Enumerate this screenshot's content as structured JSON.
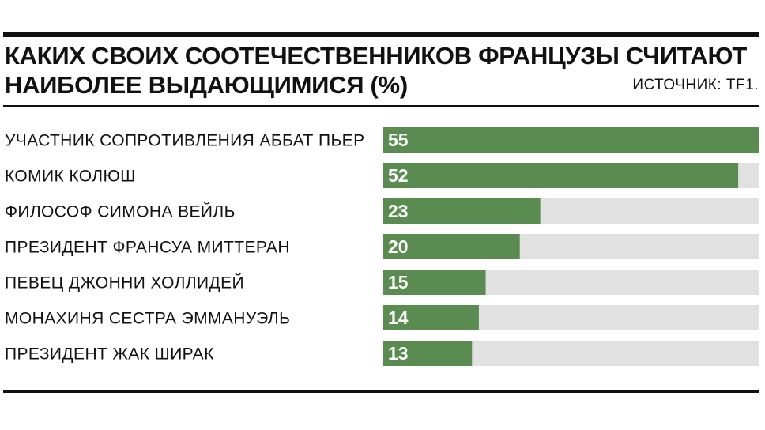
{
  "header": {
    "title_line1": "КАКИХ СВОИХ СООТЕЧЕСТВЕННИКОВ ФРАНЦУЗЫ СЧИТАЮТ",
    "title_line2": "НАИБОЛЕЕ ВЫДАЮЩИМИСЯ (%)",
    "source": "ИСТОЧНИК: TF1."
  },
  "colors": {
    "bar": "#5a8c52",
    "track": "#e1e1e1",
    "text": "#111111",
    "value_text": "#ffffff"
  },
  "chart_data": {
    "type": "bar",
    "orientation": "horizontal",
    "title": "КАКИХ СВОИХ СООТЕЧЕСТВЕННИКОВ ФРАНЦУЗЫ СЧИТАЮТ НАИБОЛЕЕ ВЫДАЮЩИМИСЯ (%)",
    "categories": [
      "УЧАСТНИК СОПРОТИВЛЕНИЯ АББАТ ПЬЕР",
      "КОМИК КОЛЮШ",
      "ФИЛОСОФ СИМОНА ВЕЙЛЬ",
      "ПРЕЗИДЕНТ ФРАНСУА МИТТЕРАН",
      "ПЕВЕЦ ДЖОННИ ХОЛЛИДЕЙ",
      "МОНАХИНЯ СЕСТРА ЭММАНУЭЛЬ",
      "ПРЕЗИДЕНТ ЖАК ШИРАК"
    ],
    "values": [
      55,
      52,
      23,
      20,
      15,
      14,
      13
    ],
    "xlim": [
      0,
      55
    ],
    "grid": false,
    "legend": "none",
    "data_labels": "inside-start"
  }
}
